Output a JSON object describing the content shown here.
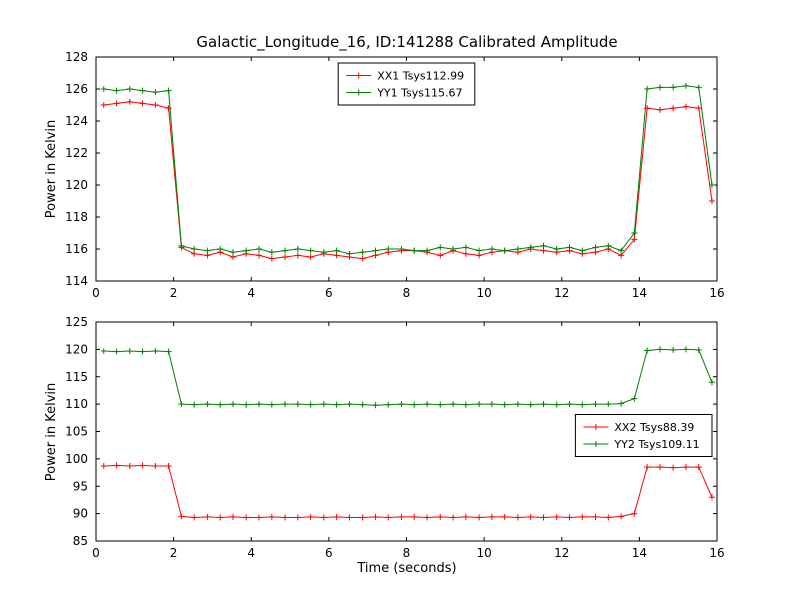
{
  "figure": {
    "background": "#ffffff",
    "frame_color": "#000000"
  },
  "chart_data": [
    {
      "type": "line",
      "title": "Galactic_Longitude_16, ID:141288 Calibrated Amplitude",
      "xlabel": "",
      "ylabel": "Power in Kelvin",
      "xlim": [
        0,
        16
      ],
      "ylim": [
        114,
        128
      ],
      "xticks": [
        0,
        2,
        4,
        6,
        8,
        10,
        12,
        14,
        16
      ],
      "yticks": [
        114,
        116,
        118,
        120,
        122,
        124,
        126,
        128
      ],
      "grid": false,
      "legend_position": "upper center",
      "x": [
        0.2,
        0.53,
        0.87,
        1.2,
        1.53,
        1.87,
        2.2,
        2.53,
        2.87,
        3.2,
        3.53,
        3.87,
        4.2,
        4.53,
        4.87,
        5.2,
        5.53,
        5.87,
        6.2,
        6.53,
        6.87,
        7.2,
        7.53,
        7.87,
        8.2,
        8.53,
        8.87,
        9.2,
        9.53,
        9.87,
        10.2,
        10.53,
        10.87,
        11.2,
        11.53,
        11.87,
        12.2,
        12.53,
        12.87,
        13.2,
        13.53,
        13.87,
        14.2,
        14.53,
        14.87,
        15.2,
        15.53,
        15.87
      ],
      "series": [
        {
          "name": "XX1 Tsys112.99",
          "color": "#ff0000",
          "marker": "+",
          "values": [
            125.0,
            125.1,
            125.2,
            125.1,
            125.0,
            124.8,
            116.1,
            115.7,
            115.6,
            115.8,
            115.5,
            115.7,
            115.6,
            115.4,
            115.5,
            115.6,
            115.5,
            115.7,
            115.6,
            115.5,
            115.4,
            115.6,
            115.8,
            115.9,
            115.9,
            115.8,
            115.6,
            115.9,
            115.7,
            115.6,
            115.8,
            115.9,
            115.8,
            116.0,
            115.9,
            115.8,
            115.9,
            115.7,
            115.8,
            116.0,
            115.6,
            116.6,
            124.8,
            124.7,
            124.8,
            124.9,
            124.8,
            119.0
          ]
        },
        {
          "name": "YY1 Tsys115.67",
          "color": "#007f00",
          "marker": "+",
          "values": [
            126.0,
            125.9,
            126.0,
            125.9,
            125.8,
            125.9,
            116.2,
            116.0,
            115.9,
            116.0,
            115.8,
            115.9,
            116.0,
            115.8,
            115.9,
            116.0,
            115.9,
            115.8,
            115.9,
            115.7,
            115.8,
            115.9,
            116.0,
            116.0,
            115.9,
            115.9,
            116.1,
            116.0,
            116.1,
            115.9,
            116.0,
            115.9,
            116.0,
            116.1,
            116.2,
            116.0,
            116.1,
            115.9,
            116.1,
            116.2,
            115.9,
            117.0,
            126.0,
            126.1,
            126.1,
            126.2,
            126.1,
            120.0
          ]
        }
      ]
    },
    {
      "type": "line",
      "title": "",
      "xlabel": "Time (seconds)",
      "ylabel": "Power in Kelvin",
      "xlim": [
        0,
        16
      ],
      "ylim": [
        85,
        125
      ],
      "xticks": [
        0,
        2,
        4,
        6,
        8,
        10,
        12,
        14,
        16
      ],
      "yticks": [
        85,
        90,
        95,
        100,
        105,
        110,
        115,
        120,
        125
      ],
      "grid": false,
      "legend_position": "center right",
      "x": [
        0.2,
        0.53,
        0.87,
        1.2,
        1.53,
        1.87,
        2.2,
        2.53,
        2.87,
        3.2,
        3.53,
        3.87,
        4.2,
        4.53,
        4.87,
        5.2,
        5.53,
        5.87,
        6.2,
        6.53,
        6.87,
        7.2,
        7.53,
        7.87,
        8.2,
        8.53,
        8.87,
        9.2,
        9.53,
        9.87,
        10.2,
        10.53,
        10.87,
        11.2,
        11.53,
        11.87,
        12.2,
        12.53,
        12.87,
        13.2,
        13.53,
        13.87,
        14.2,
        14.53,
        14.87,
        15.2,
        15.53,
        15.87
      ],
      "series": [
        {
          "name": "XX2 Tsys88.39",
          "color": "#ff0000",
          "marker": "+",
          "values": [
            98.7,
            98.8,
            98.7,
            98.8,
            98.7,
            98.7,
            89.5,
            89.3,
            89.4,
            89.3,
            89.4,
            89.3,
            89.3,
            89.4,
            89.3,
            89.3,
            89.4,
            89.3,
            89.4,
            89.3,
            89.3,
            89.4,
            89.3,
            89.4,
            89.4,
            89.3,
            89.4,
            89.3,
            89.4,
            89.3,
            89.4,
            89.4,
            89.3,
            89.4,
            89.3,
            89.4,
            89.3,
            89.4,
            89.4,
            89.3,
            89.5,
            90.0,
            98.5,
            98.5,
            98.4,
            98.5,
            98.5,
            93.0
          ]
        },
        {
          "name": "YY2 Tsys109.11",
          "color": "#007f00",
          "marker": "+",
          "values": [
            119.7,
            119.6,
            119.7,
            119.6,
            119.7,
            119.6,
            110.0,
            109.9,
            110.0,
            109.9,
            110.0,
            109.9,
            110.0,
            109.9,
            110.0,
            110.0,
            109.9,
            110.0,
            109.9,
            110.0,
            109.9,
            109.8,
            109.9,
            110.0,
            109.9,
            110.0,
            109.9,
            110.0,
            109.9,
            110.0,
            110.0,
            109.9,
            110.0,
            109.9,
            110.0,
            109.9,
            110.0,
            109.9,
            110.0,
            110.0,
            110.1,
            111.0,
            119.8,
            120.0,
            119.9,
            120.0,
            119.9,
            114.0
          ]
        }
      ]
    }
  ]
}
